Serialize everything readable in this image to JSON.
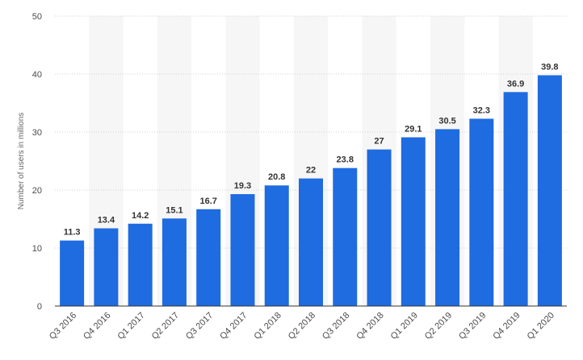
{
  "chart_data": {
    "type": "bar",
    "ylabel": "Number of users in millions",
    "ylim": [
      0,
      50
    ],
    "yticks": [
      0,
      10,
      20,
      30,
      40,
      50
    ],
    "grid": true,
    "legend": "none",
    "categories": [
      "Q3 2016",
      "Q4 2016",
      "Q1 2017",
      "Q2 2017",
      "Q3 2017",
      "Q4 2017",
      "Q1 2018",
      "Q2 2018",
      "Q3 2018",
      "Q4 2018",
      "Q1 2019",
      "Q2 2019",
      "Q3 2019",
      "Q4 2019",
      "Q1 2020"
    ],
    "values": [
      11.3,
      13.4,
      14.2,
      15.1,
      16.7,
      19.3,
      20.8,
      22,
      23.8,
      27,
      29.1,
      30.5,
      32.3,
      36.9,
      39.8
    ],
    "colors": {
      "bar": "#1f6be0",
      "band": "#f6f6f6",
      "grid": "#d0d0d0",
      "axis": "#333333"
    }
  }
}
